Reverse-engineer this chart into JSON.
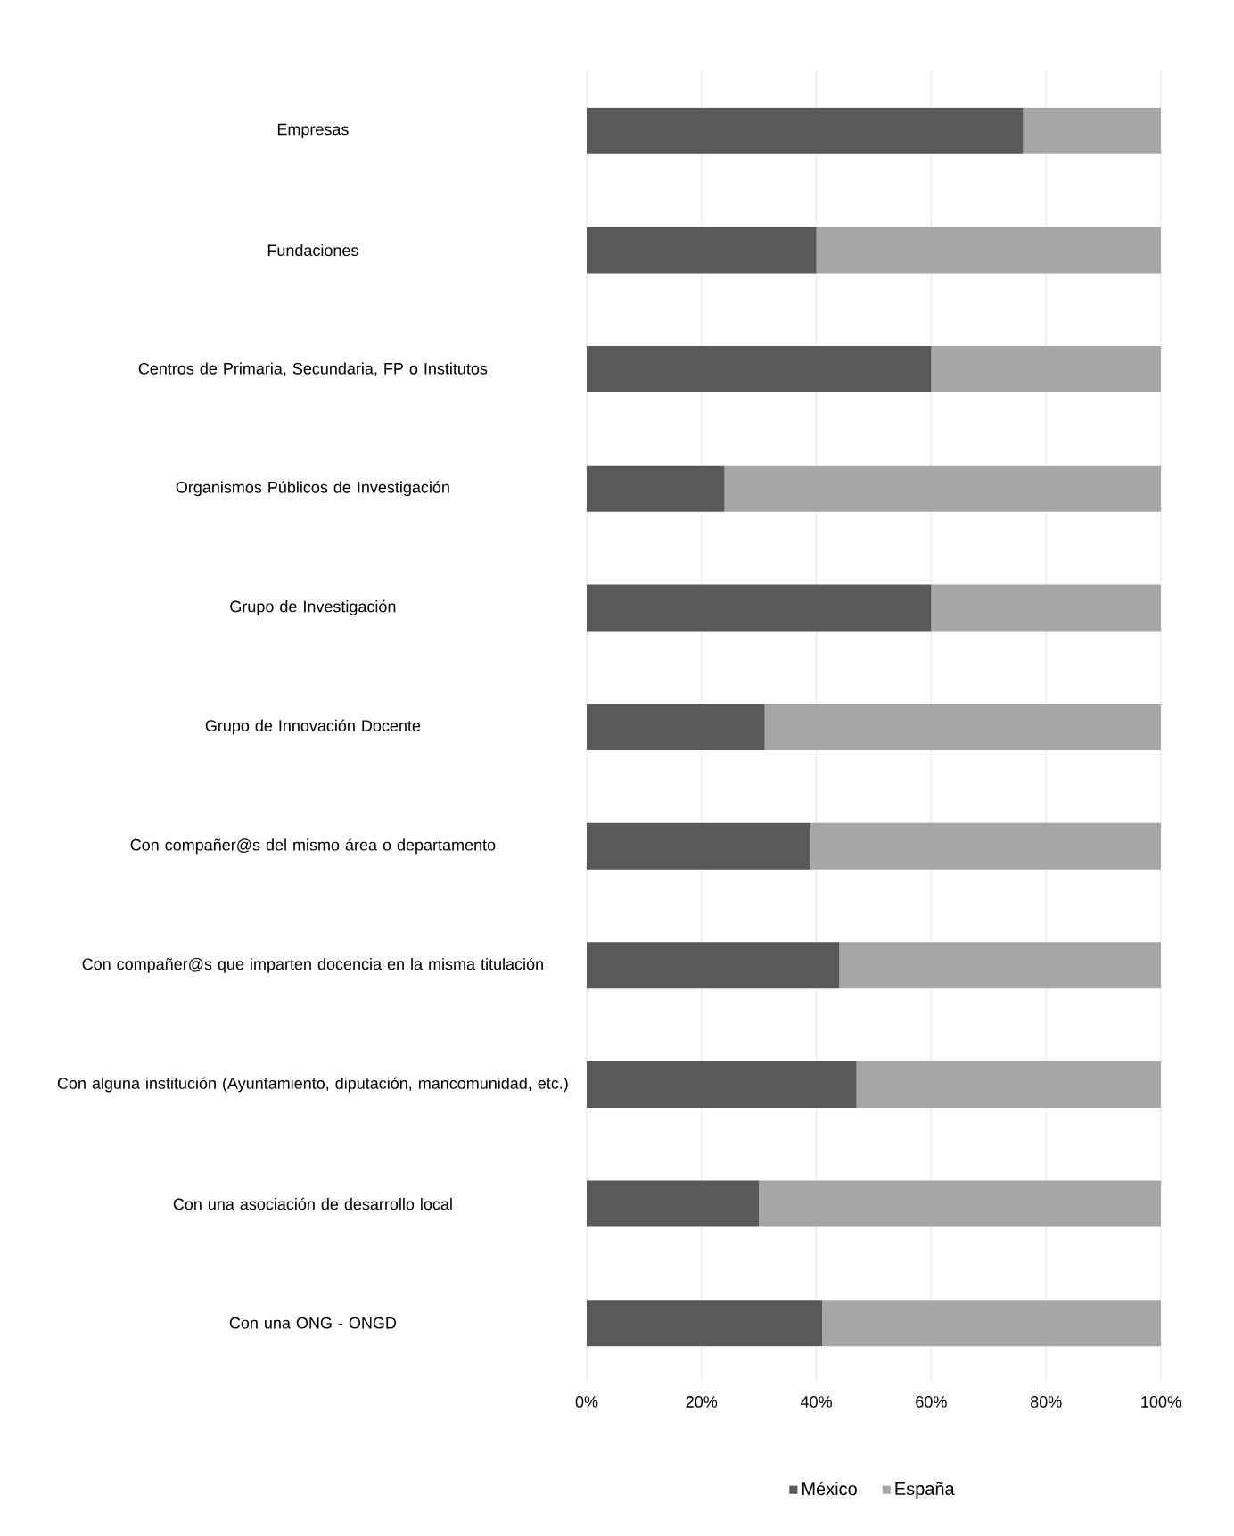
{
  "chart_data": {
    "type": "bar",
    "orientation": "horizontal",
    "stacked": true,
    "categories": [
      "Empresas",
      "Fundaciones",
      "Centros de Primaria, Secundaria, FP o Institutos",
      "Organismos Públicos de Investigación",
      "Grupo de Investigación",
      "Grupo de Innovación Docente",
      "Con compañer@s del mismo área o departamento",
      "Con compañer@s que imparten docencia en la misma titulación",
      "Con alguna institución (Ayuntamiento, diputación, mancomunidad, etc.)",
      "Con una asociación de desarrollo local",
      "Con una ONG - ONGD"
    ],
    "series": [
      {
        "name": "México",
        "color": "#595959",
        "values": [
          76,
          40,
          60,
          24,
          60,
          31,
          39,
          44,
          47,
          30,
          41
        ]
      },
      {
        "name": "España",
        "color": "#a6a6a6",
        "values": [
          24,
          60,
          40,
          76,
          40,
          69,
          61,
          56,
          53,
          70,
          59
        ]
      }
    ],
    "xlim": [
      0,
      100
    ],
    "xticks": [
      {
        "value": 0,
        "label": "0%"
      },
      {
        "value": 20,
        "label": "20%"
      },
      {
        "value": 40,
        "label": "40%"
      },
      {
        "value": 60,
        "label": "60%"
      },
      {
        "value": 80,
        "label": "80%"
      },
      {
        "value": 100,
        "label": "100%"
      }
    ],
    "grid": "x",
    "legend": "bottom"
  }
}
